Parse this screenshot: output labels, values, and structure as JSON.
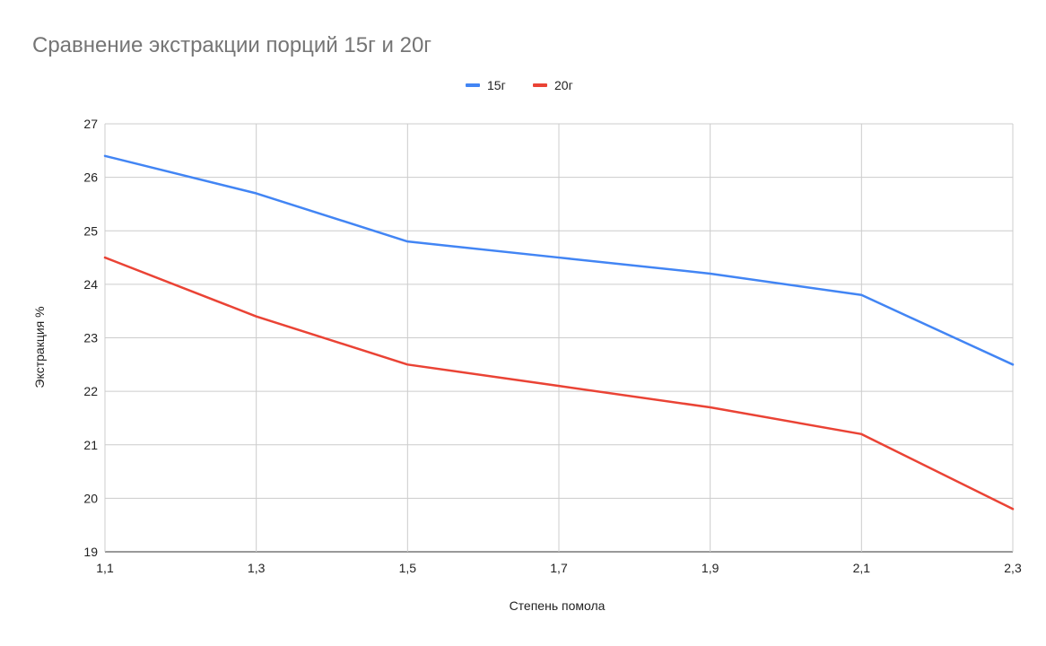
{
  "chart_data": {
    "type": "line",
    "title": "Сравнение экстракции порций 15г и 20г",
    "xlabel": "Степень помола",
    "ylabel": "Экстракция %",
    "x": [
      "1,1",
      "1,3",
      "1,5",
      "1,7",
      "1,9",
      "2,1",
      "2,3"
    ],
    "x_values": [
      1.1,
      1.3,
      1.5,
      1.7,
      1.9,
      2.1,
      2.3
    ],
    "xlim": [
      1.1,
      2.3
    ],
    "ylim": [
      19,
      27
    ],
    "yticks": [
      "19",
      "20",
      "21",
      "22",
      "23",
      "24",
      "25",
      "26",
      "27"
    ],
    "ytick_values": [
      19,
      20,
      21,
      22,
      23,
      24,
      25,
      26,
      27
    ],
    "grid": true,
    "legend_position": "top-center",
    "series": [
      {
        "name": "15г",
        "color": "#4285F4",
        "values": [
          26.4,
          25.7,
          24.8,
          24.5,
          24.2,
          23.8,
          22.5
        ]
      },
      {
        "name": "20г",
        "color": "#EA4335",
        "values": [
          24.5,
          23.4,
          22.5,
          22.1,
          21.7,
          21.2,
          19.8
        ]
      }
    ]
  }
}
